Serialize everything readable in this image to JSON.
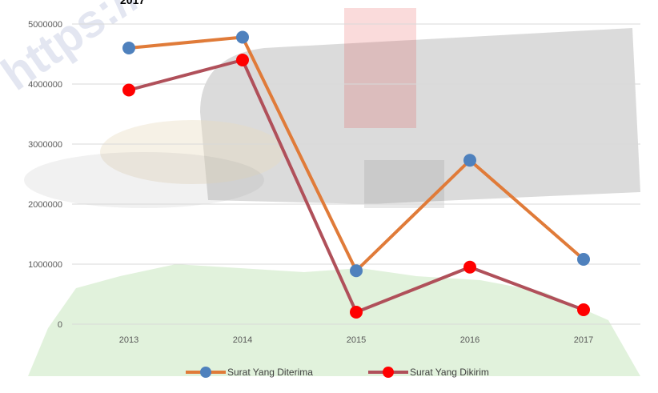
{
  "title_fragment": "2017",
  "watermark_text": "https://",
  "colors": {
    "background": "#ffffff",
    "gridline": "#d9d9d9",
    "axis": "#d9d9d9",
    "tick_text": "#595959"
  },
  "chart_data": {
    "type": "line",
    "categories": [
      "2013",
      "2014",
      "2015",
      "2016",
      "2017"
    ],
    "ylim": [
      0,
      5000000
    ],
    "yticks": [
      "0",
      "1000000",
      "2000000",
      "3000000",
      "4000000",
      "5000000"
    ],
    "grid": true,
    "legend_position": "bottom",
    "series": [
      {
        "name": "Surat Yang Diterima",
        "values": [
          4600000,
          4780000,
          890000,
          2730000,
          1080000
        ],
        "line_color": "#e07b39",
        "marker_color": "#4f81bd"
      },
      {
        "name": "Surat Yang Dikirim",
        "values": [
          3900000,
          4400000,
          200000,
          950000,
          240000
        ],
        "line_color": "#b0505a",
        "marker_color": "#ff0000"
      }
    ]
  }
}
